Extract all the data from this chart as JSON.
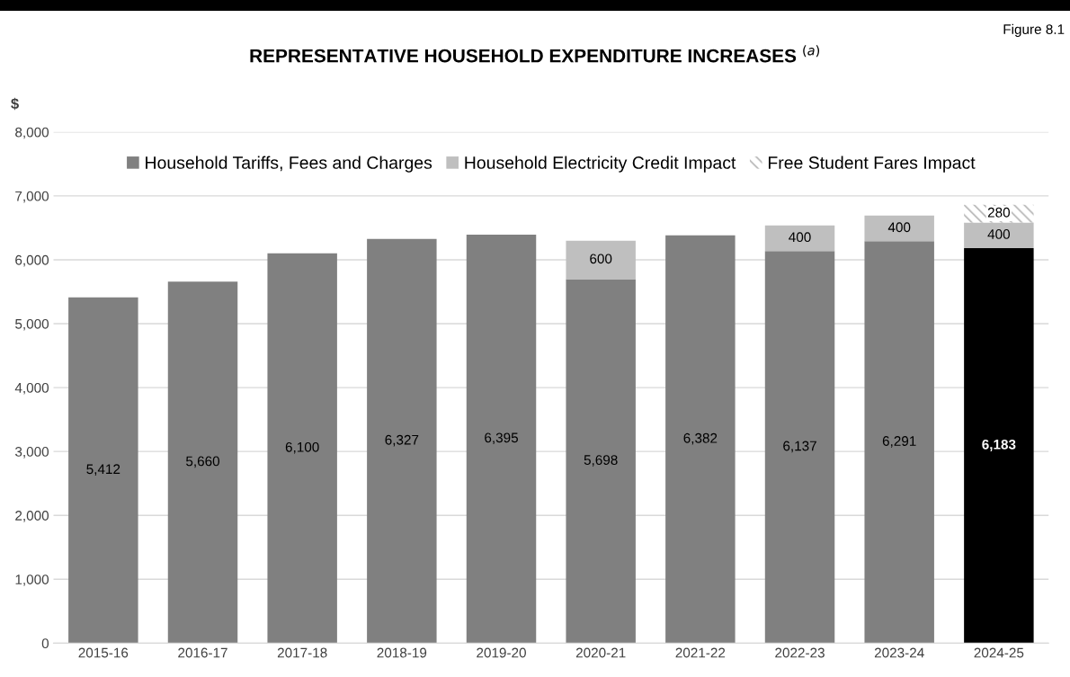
{
  "chart_data": {
    "type": "bar",
    "title": "REPRESENTATIVE HOUSEHOLD EXPENDITURE INCREASES $^{(a)}$",
    "ylabel": "$",
    "annotations": [
      "Figure 8.1"
    ],
    "categories": [
      "2015-16",
      "2016-17",
      "2017-18",
      "2018-19",
      "2019-20",
      "2020-21",
      "2021-22",
      "2022-23",
      "2023-24",
      "2024-25"
    ],
    "stacked": true,
    "grid": "y",
    "legend": "top",
    "ylim": [
      0,
      8000
    ],
    "yticks": [
      0,
      {
        "value": 1000,
        "label": "1,000"
      },
      {
        "value": 2000,
        "label": "2,000"
      },
      {
        "value": 3000,
        "label": "3,000"
      },
      {
        "value": 4000,
        "label": "4,000"
      },
      {
        "value": 5000,
        "label": "5,000"
      },
      {
        "value": 6000,
        "label": "6,000"
      },
      {
        "value": 7000,
        "label": "7,000"
      },
      {
        "value": 8000,
        "label": "8,000"
      }
    ],
    "series": [
      {
        "name": "Household Tariffs, Fees and Charges",
        "color": "#808080",
        "colors": [
          "#808080",
          "#808080",
          "#808080",
          "#808080",
          "#808080",
          "#808080",
          "#808080",
          "#808080",
          "#808080",
          "#000000"
        ],
        "values": [
          5412,
          5660,
          6100,
          6327,
          6395,
          5698,
          6382,
          6137,
          6291,
          6183
        ],
        "value_labels": [
          "5,412",
          "5,660",
          "6,100",
          "6,327",
          "6,395",
          "5,698",
          "6,382",
          "6,137",
          "6,291",
          "6,183"
        ]
      },
      {
        "name": "Household Electricity Credit Impact",
        "color": "#bfbfbf",
        "values": [
          null,
          null,
          null,
          null,
          null,
          600,
          null,
          400,
          400,
          400
        ],
        "value_labels": [
          null,
          null,
          null,
          null,
          null,
          "600",
          null,
          "400",
          "400",
          "400"
        ]
      },
      {
        "name": "Free Student Fares Impact",
        "color": "#a6a6a6",
        "values": [
          null,
          null,
          null,
          null,
          null,
          null,
          null,
          null,
          null,
          280
        ],
        "value_labels": [
          null,
          null,
          null,
          null,
          null,
          null,
          null,
          null,
          null,
          "280"
        ]
      }
    ]
  }
}
